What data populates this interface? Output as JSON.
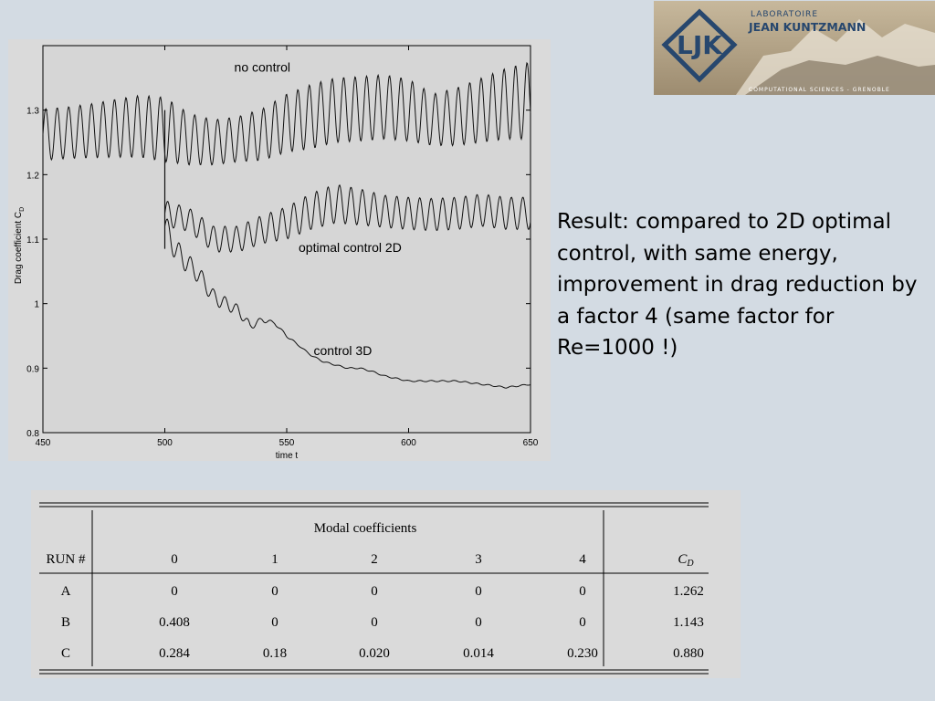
{
  "logo": {
    "line1": "LABORATOIRE",
    "line2": "JEAN KUNTZMANN",
    "footer": "COMPUTATIONAL SCIENCES - GRENOBLE",
    "monogram": "LJK",
    "colors": {
      "accent": "#27476e",
      "background": "#a99a82"
    }
  },
  "result_text": "Result: compared to 2D optimal control, with same energy, improvement in drag reduction by a factor 4 (same factor for Re=1000 !)",
  "chart_data": {
    "type": "line",
    "xlabel": "time t",
    "ylabel": "Drag coefficient C",
    "ylabel_sub": "D",
    "xlim": [
      450,
      650
    ],
    "ylim": [
      0.8,
      1.4
    ],
    "xticks": [
      450,
      500,
      550,
      600,
      650
    ],
    "xtick_labels": [
      "450",
      "500",
      "550",
      "600",
      "650"
    ],
    "yticks": [
      0.8,
      0.9,
      1.0,
      1.1,
      1.2,
      1.3
    ],
    "ytick_labels": [
      "0.8",
      "0.9",
      "1",
      "1.1",
      "1.2",
      "1.3"
    ],
    "grid": false,
    "annotations": [
      {
        "text": "no control",
        "x": 540,
        "y": 1.36
      },
      {
        "text": "optimal control 2D",
        "x": 576,
        "y": 1.08
      },
      {
        "text": "control 3D",
        "x": 573,
        "y": 0.92
      }
    ],
    "series": [
      {
        "x": [
          450,
          460,
          470,
          480,
          490,
          500,
          510,
          520,
          530,
          540,
          550,
          560,
          570,
          580,
          590,
          600,
          610,
          620,
          630,
          640,
          650
        ],
        "y": [
          1.262,
          1.265,
          1.268,
          1.272,
          1.275,
          1.27,
          1.255,
          1.25,
          1.255,
          1.262,
          1.28,
          1.29,
          1.3,
          1.302,
          1.305,
          1.3,
          1.285,
          1.29,
          1.3,
          1.31,
          1.315
        ],
        "amp": [
          0.04,
          0.04,
          0.042,
          0.045,
          0.048,
          0.05,
          0.04,
          0.035,
          0.035,
          0.04,
          0.045,
          0.05,
          0.05,
          0.05,
          0.05,
          0.048,
          0.04,
          0.045,
          0.05,
          0.055,
          0.06
        ]
      },
      {
        "x": [
          500,
          510,
          520,
          530,
          540,
          550,
          560,
          570,
          580,
          590,
          600,
          610,
          620,
          630,
          640,
          650
        ],
        "y": [
          1.14,
          1.13,
          1.1,
          1.1,
          1.115,
          1.125,
          1.143,
          1.155,
          1.15,
          1.143,
          1.14,
          1.138,
          1.14,
          1.145,
          1.14,
          1.14
        ],
        "amp": [
          0.02,
          0.018,
          0.02,
          0.02,
          0.022,
          0.025,
          0.028,
          0.03,
          0.028,
          0.025,
          0.025,
          0.025,
          0.025,
          0.025,
          0.025,
          0.025
        ]
      },
      {
        "x": [
          500,
          505,
          510,
          515,
          520,
          525,
          530,
          535,
          540,
          545,
          550,
          555,
          560,
          565,
          570,
          575,
          580,
          585,
          590,
          600,
          610,
          620,
          630,
          640,
          650
        ],
        "y": [
          1.12,
          1.08,
          1.06,
          1.04,
          1.01,
          1.0,
          0.99,
          0.965,
          0.975,
          0.97,
          0.95,
          0.935,
          0.92,
          0.91,
          0.905,
          0.9,
          0.9,
          0.895,
          0.888,
          0.88,
          0.88,
          0.88,
          0.875,
          0.87,
          0.875
        ],
        "amp": [
          0.02,
          0.018,
          0.015,
          0.012,
          0.012,
          0.01,
          0.008,
          0.006,
          0.004,
          0.002,
          0.002,
          0.001,
          0.001,
          0.001,
          0.001,
          0.001,
          0.001,
          0.001,
          0.001,
          0.001,
          0.001,
          0.001,
          0.001,
          0.001,
          0.001
        ]
      }
    ],
    "table": {
      "group_header": "Modal coefficients",
      "row_header": "RUN #",
      "columns": [
        "0",
        "1",
        "2",
        "3",
        "4"
      ],
      "cd_header": "C",
      "cd_sub": "D",
      "rows": [
        {
          "run": "A",
          "values": [
            "0",
            "0",
            "0",
            "0",
            "0"
          ],
          "cd": "1.262"
        },
        {
          "run": "B",
          "values": [
            "0.408",
            "0",
            "0",
            "0",
            "0"
          ],
          "cd": "1.143"
        },
        {
          "run": "C",
          "values": [
            "0.284",
            "0.18",
            "0.020",
            "0.014",
            "0.230"
          ],
          "cd": "0.880"
        }
      ]
    }
  }
}
